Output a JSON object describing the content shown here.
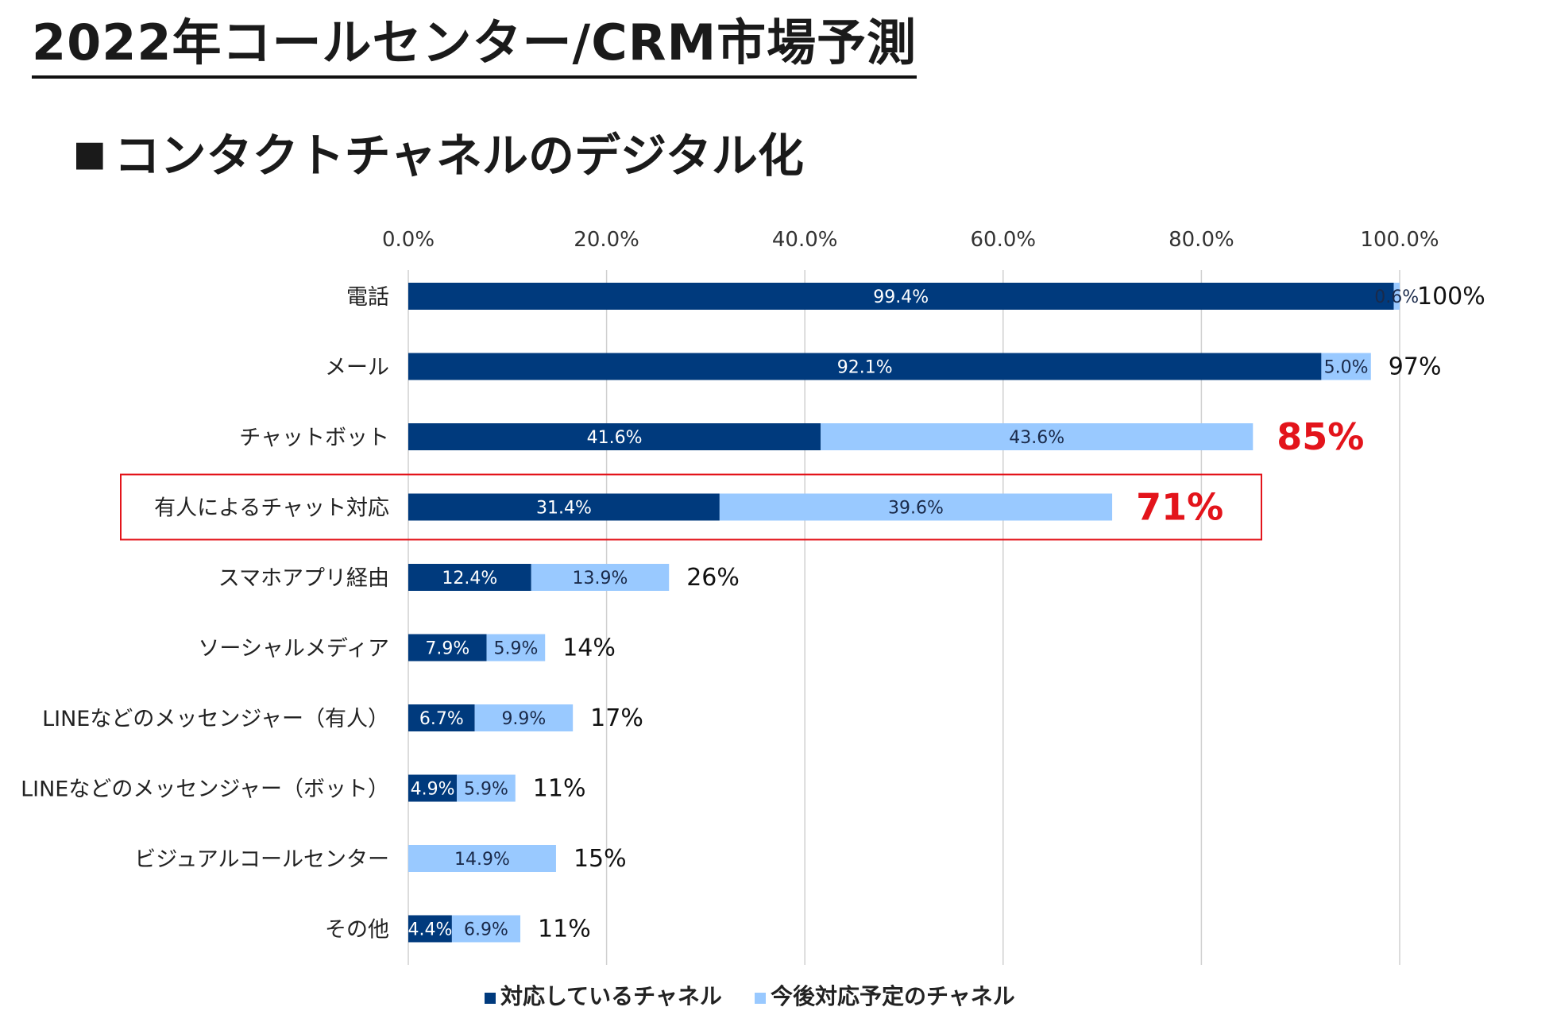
{
  "page_title": "2022年コールセンター/CRM市場予測",
  "section": {
    "marker": "■",
    "title": "コンタクトチャネルのデジタル化"
  },
  "colors": {
    "current": "#003A7D",
    "planned": "#99C9FF",
    "highlight": "#E3141B",
    "grid": "#d0d0d0"
  },
  "chart_data": {
    "type": "bar",
    "orientation": "horizontal",
    "stacked": true,
    "xlim": [
      0,
      100
    ],
    "x_ticks": [
      "0.0%",
      "20.0%",
      "40.0%",
      "60.0%",
      "80.0%",
      "100.0%"
    ],
    "x_tick_values": [
      0,
      20,
      40,
      60,
      80,
      100
    ],
    "grid": true,
    "legend_position": "bottom",
    "categories": [
      "電話",
      "メール",
      "チャットボット",
      "有人によるチャット対応",
      "スマホアプリ経由",
      "ソーシャルメディア",
      "LINEなどのメッセンジャー（有人）",
      "LINEなどのメッセンジャー（ボット）",
      "ビジュアルコールセンター",
      "その他"
    ],
    "series": [
      {
        "name": "対応しているチャネル",
        "values": [
          99.4,
          92.1,
          41.6,
          31.4,
          12.4,
          7.9,
          6.7,
          4.9,
          0,
          4.4
        ],
        "labels": [
          "99.4%",
          "92.1%",
          "41.6%",
          "31.4%",
          "12.4%",
          "7.9%",
          "6.7%",
          "4.9%",
          "",
          "4.4%"
        ]
      },
      {
        "name": "今後対応予定のチャネル",
        "values": [
          0.6,
          5.0,
          43.6,
          39.6,
          13.9,
          5.9,
          9.9,
          5.9,
          14.9,
          6.9
        ],
        "labels": [
          "0.6%",
          "5.0%",
          "43.6%",
          "39.6%",
          "13.9%",
          "5.9%",
          "9.9%",
          "5.9%",
          "14.9%",
          "6.9%"
        ]
      }
    ],
    "totals": [
      "100%",
      "97%",
      "85%",
      "71%",
      "26%",
      "14%",
      "17%",
      "11%",
      "15%",
      "11%"
    ],
    "highlight_totals": [
      2,
      3
    ],
    "boxed_category": 3
  }
}
